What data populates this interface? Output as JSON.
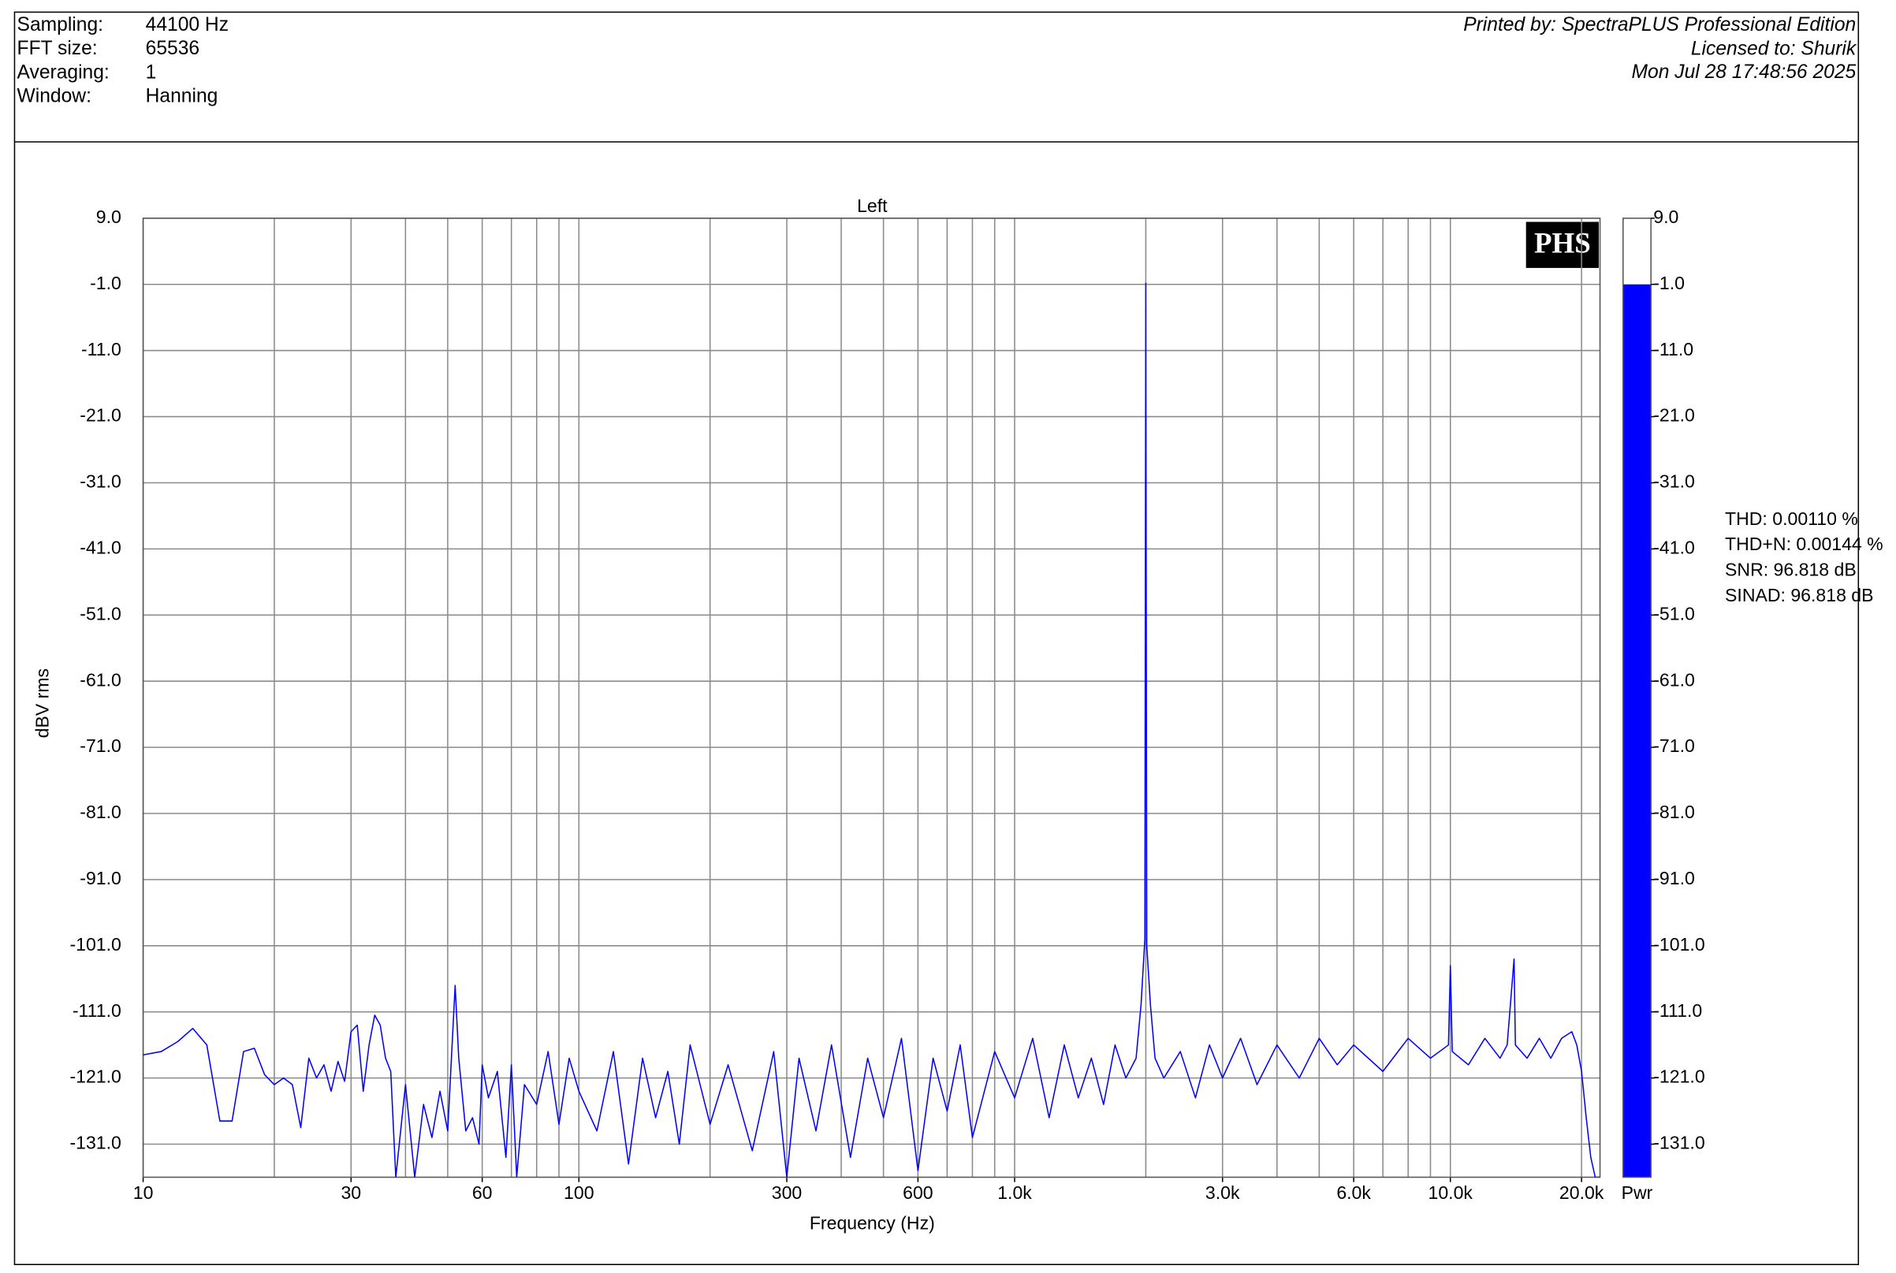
{
  "header": {
    "fields": [
      {
        "label": "Sampling:",
        "value": "44100 Hz"
      },
      {
        "label": "FFT size:",
        "value": "65536"
      },
      {
        "label": "Averaging:",
        "value": "1"
      },
      {
        "label": "Window:",
        "value": "Hanning"
      }
    ],
    "printed_by": "Printed by: SpectraPLUS Professional Edition",
    "licensed_to": "Licensed to: Shurik",
    "date": "Mon Jul 28 17:48:56 2025"
  },
  "chart_data": [
    {
      "type": "line",
      "title": "Left",
      "x_label": "Frequency (Hz)",
      "y_label": "dBV rms",
      "logo": "PHS",
      "log_x": true,
      "grid": true,
      "xlim": [
        10,
        22050
      ],
      "ylim": [
        -136,
        9
      ],
      "xticks": [
        10,
        30,
        60,
        100,
        300,
        600,
        {
          "value": 1000,
          "label": "1.0k"
        },
        {
          "value": 3000,
          "label": "3.0k"
        },
        {
          "value": 6000,
          "label": "6.0k"
        },
        {
          "value": 10000,
          "label": "10.0k"
        },
        {
          "value": 20000,
          "label": "20.0k"
        }
      ],
      "x_grid_lines": [
        10,
        20,
        30,
        40,
        50,
        60,
        70,
        80,
        90,
        100,
        200,
        300,
        400,
        500,
        600,
        700,
        800,
        900,
        1000,
        2000,
        3000,
        4000,
        5000,
        6000,
        7000,
        8000,
        9000,
        10000,
        20000
      ],
      "yticks": [
        {
          "value": 9,
          "label": "9.0"
        },
        {
          "value": -1,
          "label": "-1.0"
        },
        {
          "value": -11,
          "label": "-11.0"
        },
        {
          "value": -21,
          "label": "-21.0"
        },
        {
          "value": -31,
          "label": "-31.0"
        },
        {
          "value": -41,
          "label": "-41.0"
        },
        {
          "value": -51,
          "label": "-51.0"
        },
        {
          "value": -61,
          "label": "-61.0"
        },
        {
          "value": -71,
          "label": "-71.0"
        },
        {
          "value": -81,
          "label": "-81.0"
        },
        {
          "value": -91,
          "label": "-91.0"
        },
        {
          "value": -101,
          "label": "-101.0"
        },
        {
          "value": -111,
          "label": "-111.0"
        },
        {
          "value": -121,
          "label": "-121.0"
        },
        {
          "value": -131,
          "label": "-131.0"
        }
      ],
      "x": [
        10,
        11,
        12,
        13,
        14,
        15,
        16,
        17,
        18,
        19,
        20,
        21,
        22,
        23,
        24,
        25,
        26,
        27,
        28,
        29,
        30,
        31,
        32,
        33,
        34,
        35,
        36,
        37,
        38,
        40,
        42,
        44,
        46,
        48,
        50,
        52,
        53,
        55,
        57,
        59,
        60,
        62,
        65,
        68,
        70,
        72,
        75,
        80,
        85,
        90,
        95,
        100,
        110,
        120,
        130,
        140,
        150,
        160,
        170,
        180,
        200,
        220,
        250,
        280,
        300,
        320,
        350,
        380,
        420,
        460,
        500,
        550,
        600,
        650,
        700,
        750,
        800,
        900,
        1000,
        1100,
        1200,
        1300,
        1400,
        1500,
        1600,
        1700,
        1800,
        1900,
        1950,
        1990,
        2000,
        2010,
        2050,
        2100,
        2200,
        2400,
        2600,
        2800,
        3000,
        3300,
        3600,
        4000,
        4500,
        5000,
        5500,
        6000,
        7000,
        8000,
        9000,
        9900,
        10000,
        10100,
        11000,
        12000,
        13000,
        13500,
        14000,
        14100,
        15000,
        16000,
        17000,
        18000,
        19000,
        19500,
        20000,
        20500,
        21000,
        21500,
        22000
      ],
      "series": [
        {
          "name": "Left",
          "color": "#0000ff",
          "values": [
            -117.5,
            -117,
            -115.5,
            -113.5,
            -116,
            -127.5,
            -127.5,
            -117,
            -116.5,
            -120.5,
            -122,
            -121,
            -122,
            -128.5,
            -118,
            -121,
            -119,
            -123,
            -118.5,
            -121.5,
            -114,
            -113,
            -123,
            -116,
            -111.5,
            -113,
            -118,
            -120,
            -136,
            -122,
            -136,
            -125,
            -130,
            -123,
            -129,
            -107,
            -118,
            -129,
            -127,
            -131,
            -119,
            -124,
            -120,
            -133,
            -119,
            -136,
            -122,
            -125,
            -117,
            -128,
            -118,
            -123,
            -129,
            -117,
            -134,
            -118,
            -127,
            -120,
            -131,
            -116,
            -128,
            -119,
            -132,
            -117,
            -136,
            -118,
            -129,
            -116,
            -133,
            -118,
            -127,
            -115,
            -135,
            -118,
            -126,
            -116,
            -130,
            -117,
            -124,
            -115,
            -127,
            -116,
            -124,
            -118,
            -125,
            -116,
            -121,
            -118,
            -110,
            -100,
            -0.8,
            -101,
            -110,
            -118,
            -121,
            -117,
            -124,
            -116,
            -121,
            -115,
            -122,
            -116,
            -121,
            -115,
            -119,
            -116,
            -120,
            -115,
            -118,
            -116,
            -104,
            -117,
            -119,
            -115,
            -118,
            -116,
            -103,
            -116,
            -118,
            -115,
            -118,
            -115,
            -114,
            -116,
            -120,
            -127,
            -133,
            -136,
            -136
          ]
        }
      ],
      "annotations": [
        "THD: 0.00110 %",
        "THD+N: 0.00144 %",
        "SNR: 96.818 dB",
        "SINAD: 96.818 dB"
      ]
    },
    {
      "type": "bar",
      "categories": [
        "Pwr"
      ],
      "values": [
        -1
      ],
      "color": "#0000ff",
      "ylim": [
        -136,
        9
      ],
      "yticks": [
        {
          "value": 9,
          "label": "9.0"
        },
        {
          "value": -1,
          "label": "-1.0"
        },
        {
          "value": -11,
          "label": "-11.0"
        },
        {
          "value": -21,
          "label": "-21.0"
        },
        {
          "value": -31,
          "label": "-31.0"
        },
        {
          "value": -41,
          "label": "-41.0"
        },
        {
          "value": -51,
          "label": "-51.0"
        },
        {
          "value": -61,
          "label": "-61.0"
        },
        {
          "value": -71,
          "label": "-71.0"
        },
        {
          "value": -81,
          "label": "-81.0"
        },
        {
          "value": -91,
          "label": "-91.0"
        },
        {
          "value": -101,
          "label": "-101.0"
        },
        {
          "value": -111,
          "label": "-111.0"
        },
        {
          "value": -121,
          "label": "-121.0"
        },
        {
          "value": -131,
          "label": "-131.0"
        }
      ]
    }
  ]
}
